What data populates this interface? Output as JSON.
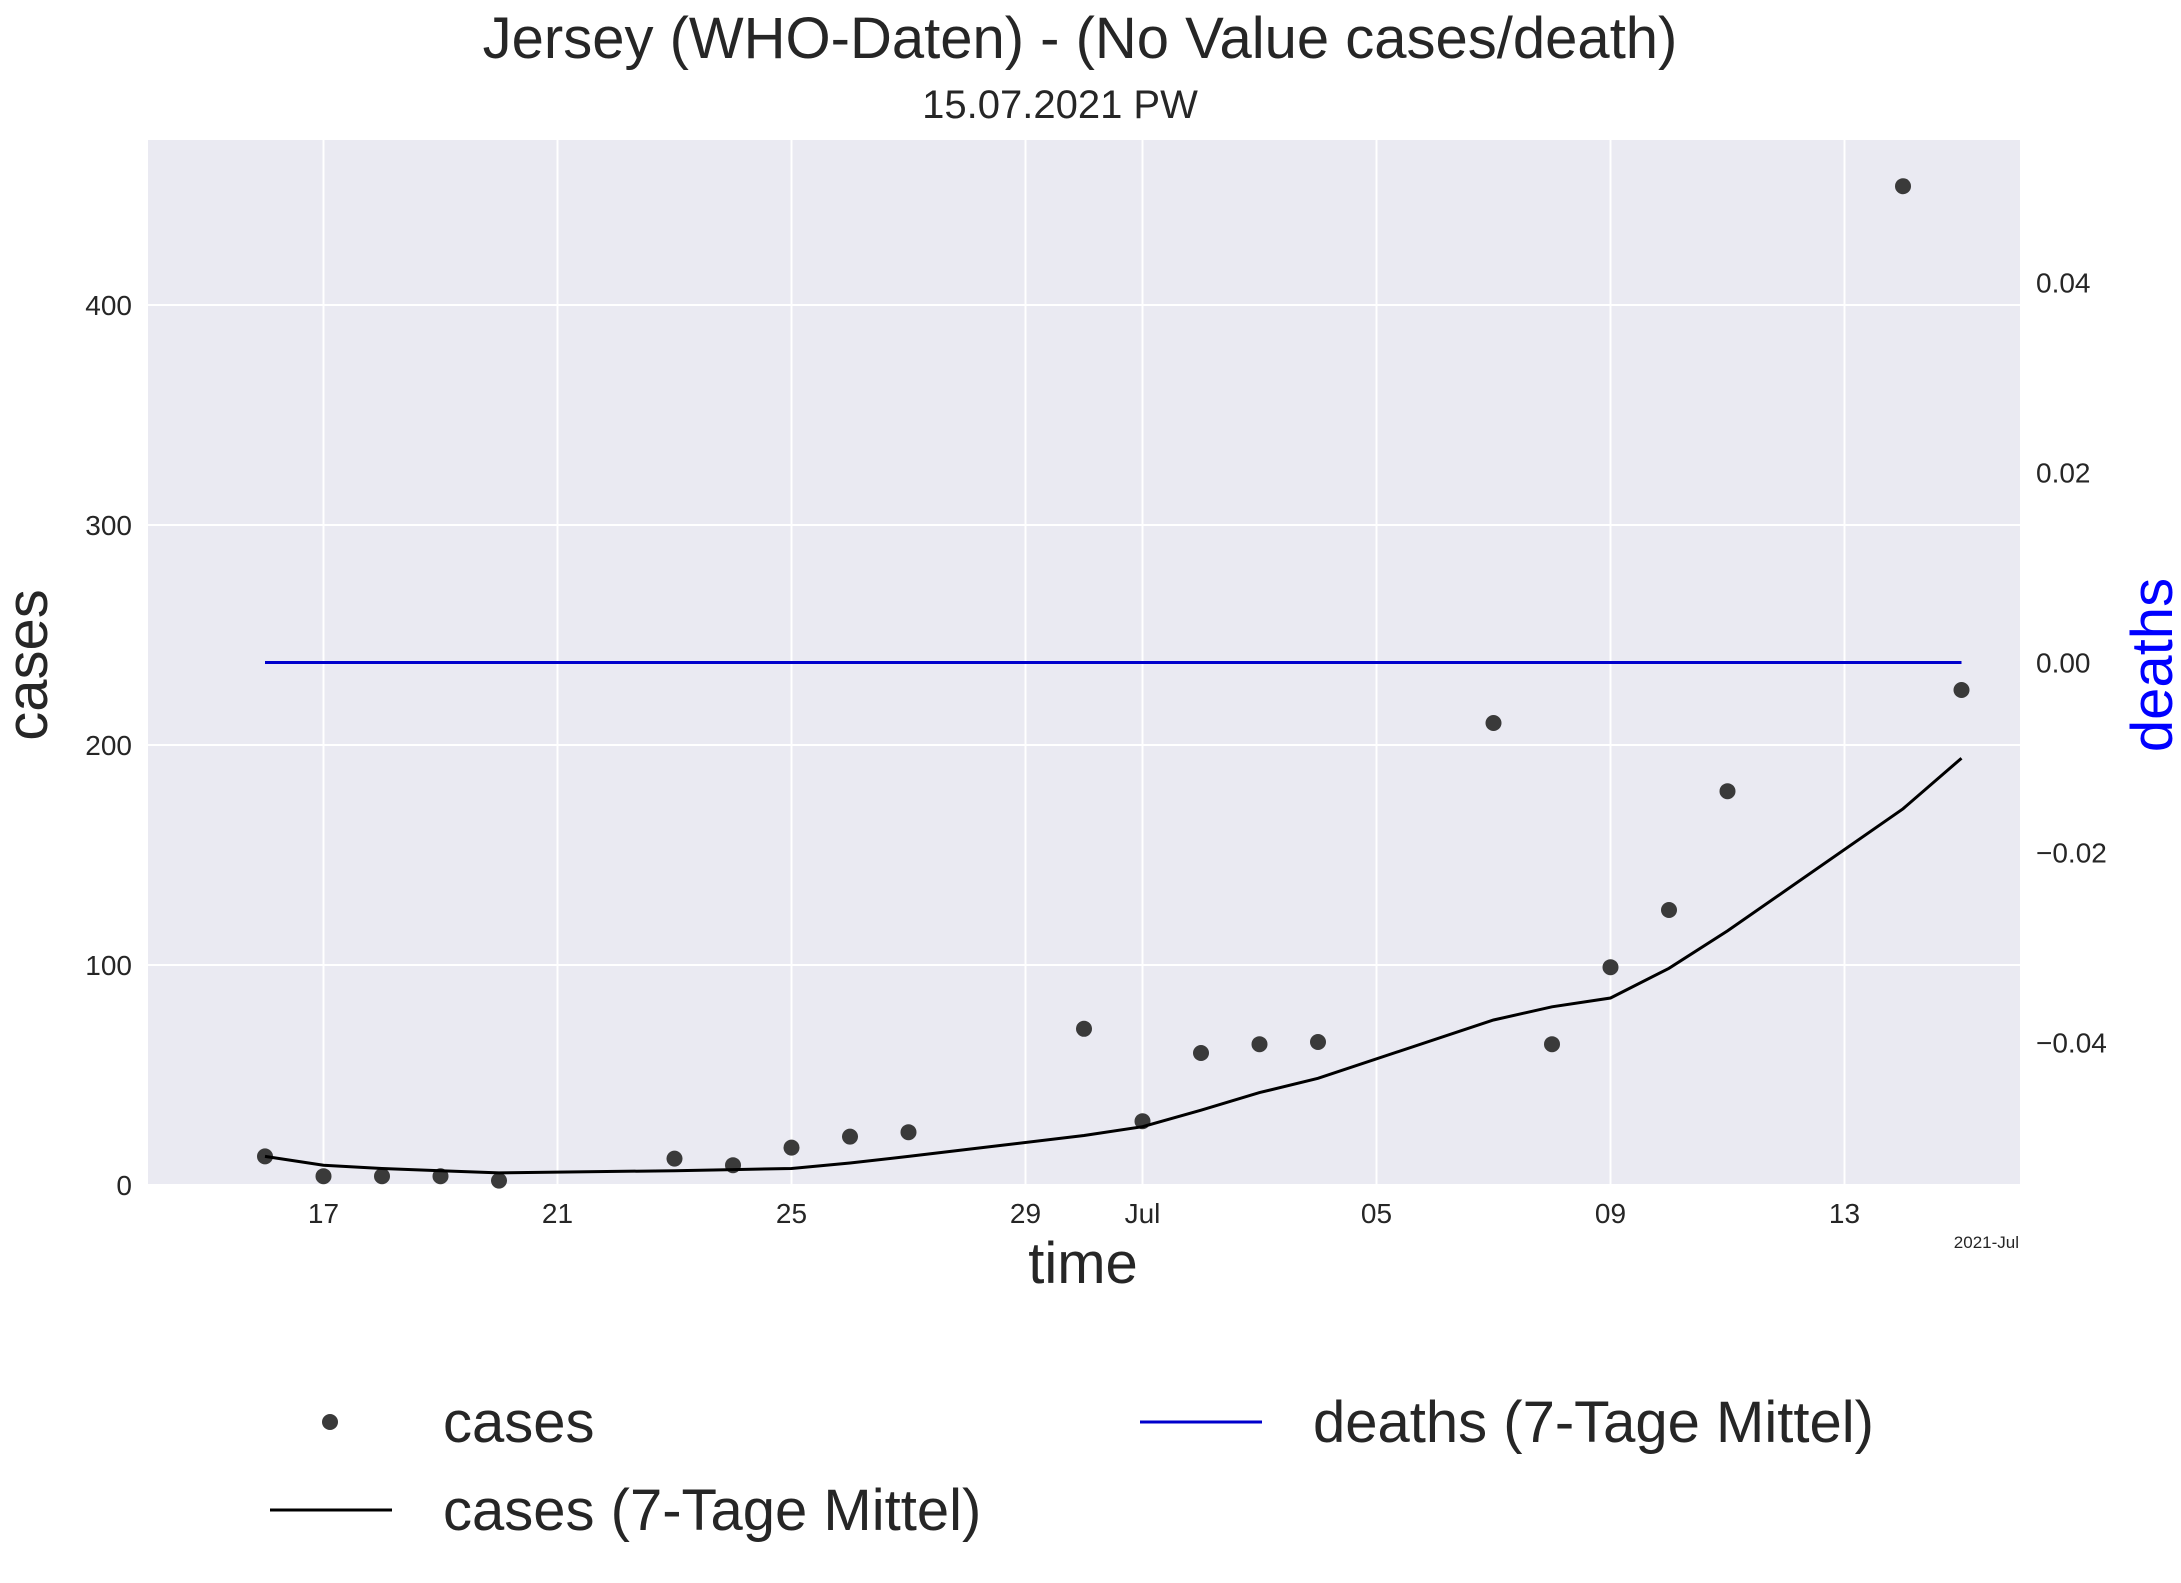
{
  "chart_data": {
    "type": "line",
    "title": "Jersey (WHO-Daten) - (No Value cases/death)",
    "subtitle": "15.07.2021 PW",
    "xlabel": "time",
    "ylabel": "cases",
    "y2label": "deaths",
    "x_offset_label": "2021-Jul",
    "x_range": [
      "2021-06-14",
      "2021-07-16"
    ],
    "ylim": [
      0,
      475
    ],
    "y2lim": [
      -0.055,
      0.055
    ],
    "x_ticks": [
      {
        "date": "2021-06-17",
        "label": "17"
      },
      {
        "date": "2021-06-21",
        "label": "21"
      },
      {
        "date": "2021-06-25",
        "label": "25"
      },
      {
        "date": "2021-06-29",
        "label": "29"
      },
      {
        "date": "2021-07-01",
        "label": "Jul"
      },
      {
        "date": "2021-07-05",
        "label": "05"
      },
      {
        "date": "2021-07-09",
        "label": "09"
      },
      {
        "date": "2021-07-13",
        "label": "13"
      }
    ],
    "y_ticks": [
      0,
      100,
      200,
      300,
      400
    ],
    "y_tick_labels": [
      "0",
      "100",
      "200",
      "300",
      "400"
    ],
    "y2_ticks": [
      0.04,
      0.02,
      0.0,
      -0.02,
      -0.04
    ],
    "y2_tick_labels": [
      "0.04",
      "0.02",
      "0.00",
      "−0.02",
      "−0.04"
    ],
    "grid": true,
    "legend_position": "below",
    "colors": {
      "background": "#eaeaf2",
      "grid": "#ffffff",
      "cases_points": "#3a3a3a",
      "cases_avg": "#000000",
      "deaths_avg": "#0000cc",
      "y2label": "#0000ff"
    },
    "series": [
      {
        "name": "cases",
        "style": "points",
        "axis": "left",
        "points": [
          {
            "x": "2021-06-16",
            "y": 13
          },
          {
            "x": "2021-06-17",
            "y": 4
          },
          {
            "x": "2021-06-18",
            "y": 4
          },
          {
            "x": "2021-06-19",
            "y": 4
          },
          {
            "x": "2021-06-20",
            "y": 2
          },
          {
            "x": "2021-06-23",
            "y": 12
          },
          {
            "x": "2021-06-24",
            "y": 9
          },
          {
            "x": "2021-06-25",
            "y": 17
          },
          {
            "x": "2021-06-26",
            "y": 22
          },
          {
            "x": "2021-06-27",
            "y": 24
          },
          {
            "x": "2021-06-30",
            "y": 71
          },
          {
            "x": "2021-07-01",
            "y": 29
          },
          {
            "x": "2021-07-02",
            "y": 60
          },
          {
            "x": "2021-07-03",
            "y": 64
          },
          {
            "x": "2021-07-04",
            "y": 65
          },
          {
            "x": "2021-07-07",
            "y": 210
          },
          {
            "x": "2021-07-08",
            "y": 64
          },
          {
            "x": "2021-07-09",
            "y": 99
          },
          {
            "x": "2021-07-10",
            "y": 125
          },
          {
            "x": "2021-07-11",
            "y": 179
          },
          {
            "x": "2021-07-14",
            "y": 454
          },
          {
            "x": "2021-07-15",
            "y": 225
          }
        ]
      },
      {
        "name": "cases (7-Tage Mittel)",
        "style": "line",
        "axis": "left",
        "points": [
          {
            "x": "2021-06-16",
            "y": 13
          },
          {
            "x": "2021-06-17",
            "y": 9
          },
          {
            "x": "2021-06-18",
            "y": 7.5
          },
          {
            "x": "2021-06-19",
            "y": 6.5
          },
          {
            "x": "2021-06-20",
            "y": 5.5
          },
          {
            "x": "2021-06-23",
            "y": 6.5
          },
          {
            "x": "2021-06-24",
            "y": 7
          },
          {
            "x": "2021-06-25",
            "y": 7.5
          },
          {
            "x": "2021-06-26",
            "y": 10
          },
          {
            "x": "2021-06-27",
            "y": 13
          },
          {
            "x": "2021-06-30",
            "y": 22.5
          },
          {
            "x": "2021-07-01",
            "y": 26.5
          },
          {
            "x": "2021-07-02",
            "y": 34
          },
          {
            "x": "2021-07-03",
            "y": 42
          },
          {
            "x": "2021-07-04",
            "y": 48.5
          },
          {
            "x": "2021-07-07",
            "y": 75
          },
          {
            "x": "2021-07-08",
            "y": 81
          },
          {
            "x": "2021-07-09",
            "y": 85
          },
          {
            "x": "2021-07-10",
            "y": 98.5
          },
          {
            "x": "2021-07-11",
            "y": 115.5
          },
          {
            "x": "2021-07-14",
            "y": 171
          },
          {
            "x": "2021-07-15",
            "y": 194
          }
        ]
      },
      {
        "name": "deaths (7-Tage Mittel)",
        "style": "line",
        "axis": "right",
        "points": [
          {
            "x": "2021-06-16",
            "y": 0
          },
          {
            "x": "2021-07-15",
            "y": 0
          }
        ]
      }
    ]
  }
}
